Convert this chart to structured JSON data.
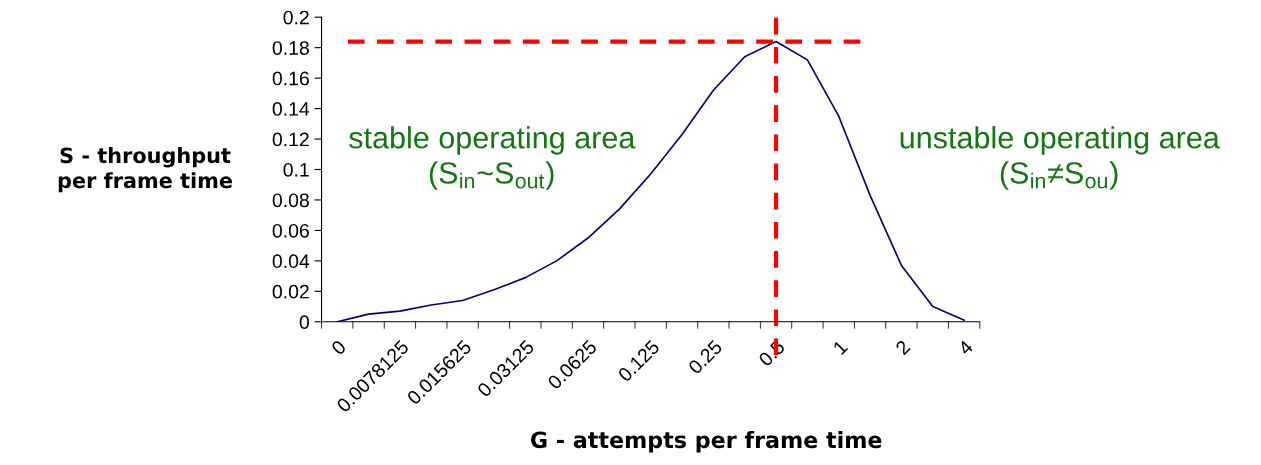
{
  "chart_data": {
    "type": "line",
    "xlabel": "G - attempts per frame time",
    "ylabel": "S - throughput\nper frame time",
    "categories": [
      "0",
      null,
      "0.0078125",
      null,
      "0.015625",
      null,
      "0.03125",
      null,
      "0.0625",
      null,
      "0.125",
      null,
      "0.25",
      null,
      "0.5",
      null,
      "1",
      null,
      "2",
      null,
      "4"
    ],
    "series": [
      {
        "color": "#000080",
        "values": [
          0.0,
          0.005,
          0.007,
          0.011,
          0.014,
          0.021,
          0.029,
          0.04,
          0.055,
          0.074,
          0.097,
          0.123,
          0.152,
          0.174,
          0.184,
          0.172,
          0.135,
          0.083,
          0.037,
          0.01,
          0.001
        ]
      }
    ],
    "ylim": [
      0,
      0.2
    ],
    "yticks": [
      0,
      0.02,
      0.04,
      0.06,
      0.08,
      0.1,
      0.12,
      0.14,
      0.16,
      0.18,
      0.2
    ],
    "ref_lines": [
      {
        "axis": "y",
        "value": 0.184,
        "color": "#ff0000",
        "line_style": "dashed"
      },
      {
        "axis": "x",
        "value": "0.5",
        "color": "#ff0000",
        "line_style": "dashed"
      }
    ],
    "annotations": [
      "stable operating area\n(S$_{in}$~S$_{out}$)",
      "unstable operating area\n(S$_{in}$≠S$_{ou}$)"
    ],
    "grid": false,
    "legend": false,
    "marker": "none",
    "line_style": "solid"
  }
}
